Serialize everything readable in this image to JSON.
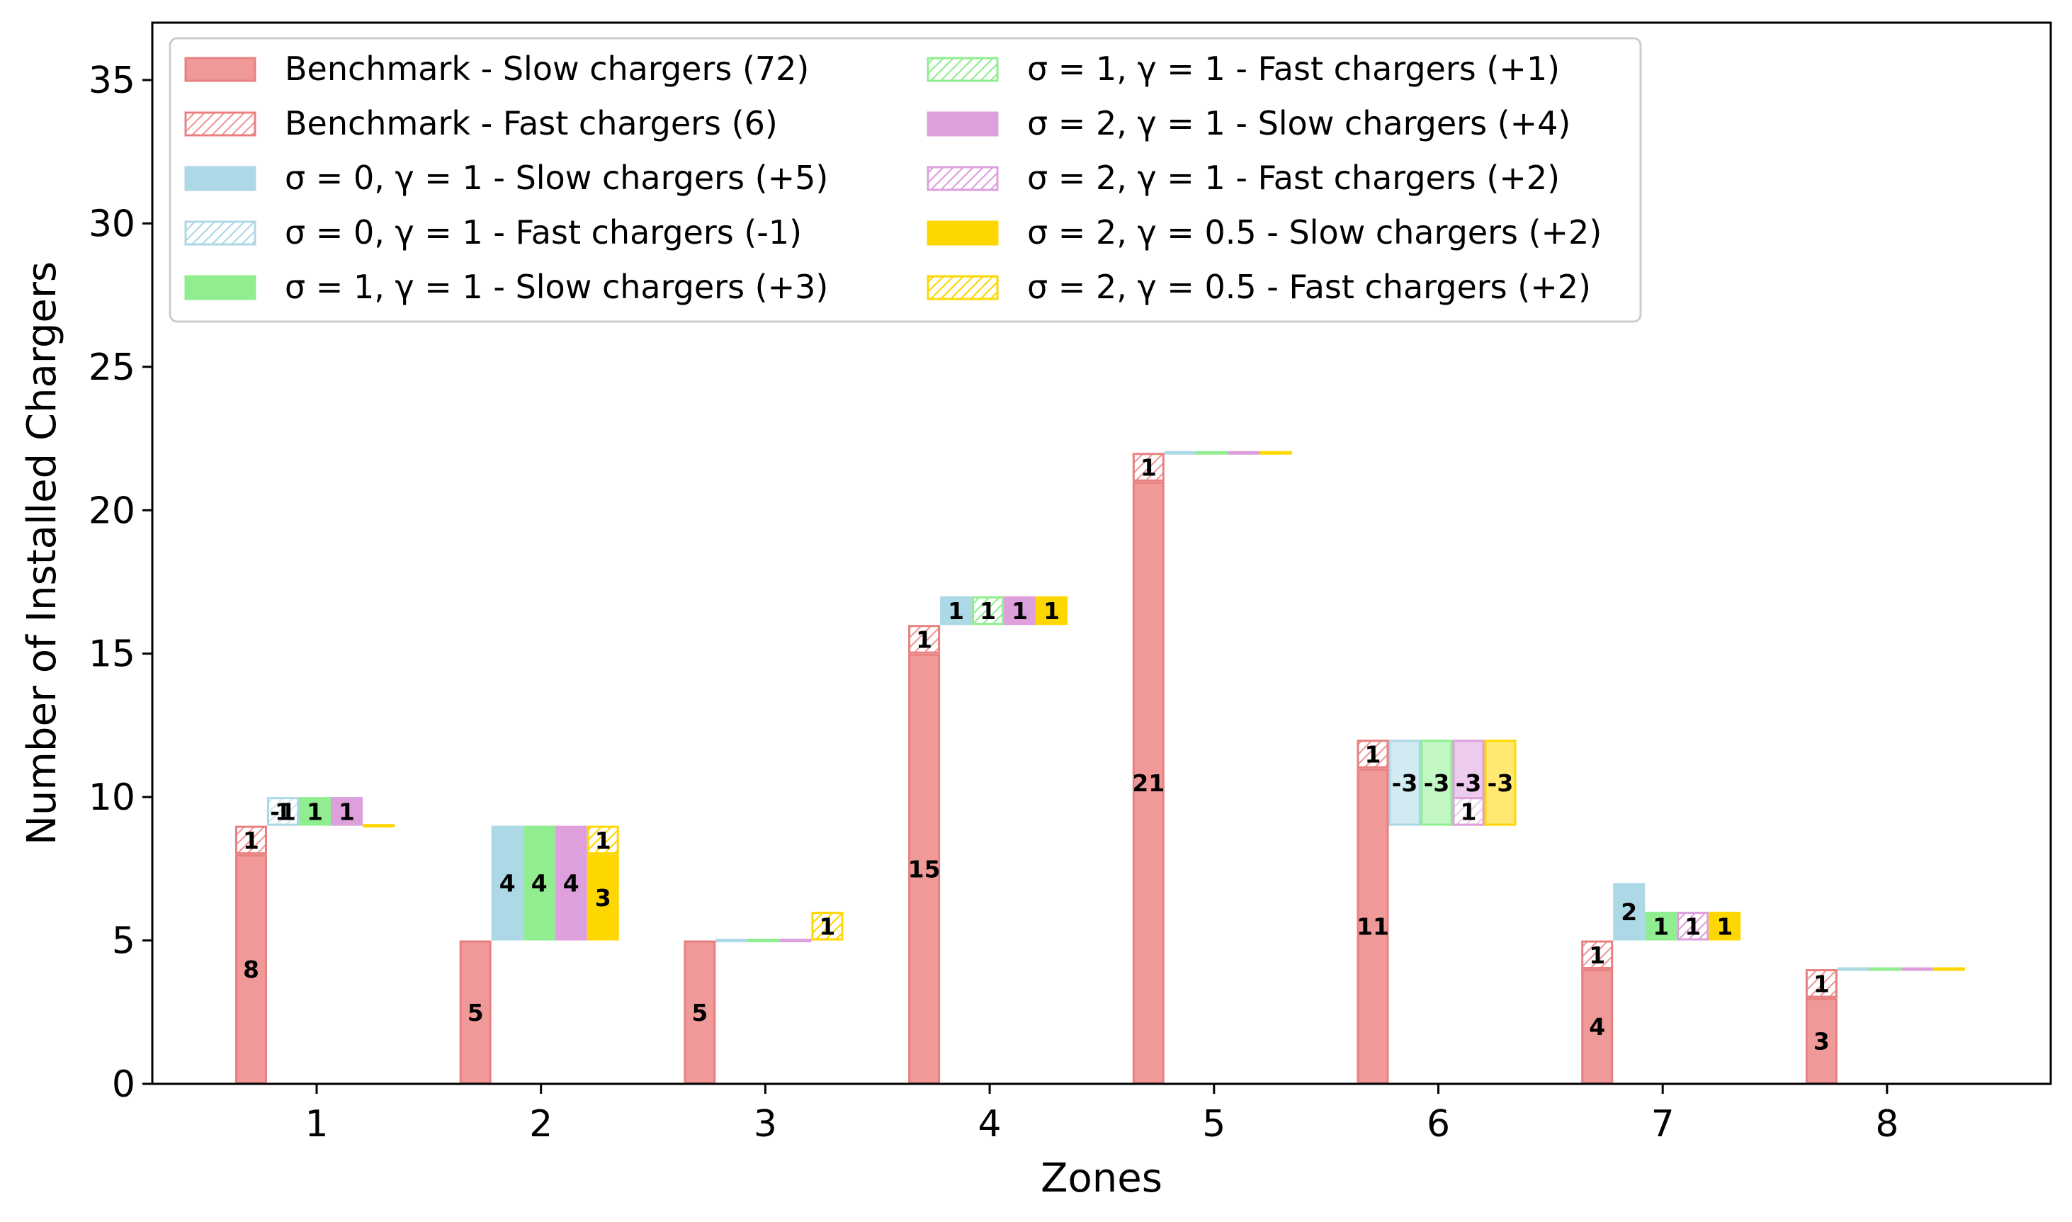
{
  "chart_data": {
    "type": "bar",
    "subtype": "stacked-offset-grouped",
    "title": "",
    "xlabel": "Zones",
    "ylabel": "Number of Installed Chargers",
    "ylim": [
      0,
      37
    ],
    "yticks": [
      0,
      5,
      10,
      15,
      20,
      25,
      30,
      35
    ],
    "grid": false,
    "legend_position": "top-left",
    "categories": [
      "1",
      "2",
      "3",
      "4",
      "5",
      "6",
      "7",
      "8"
    ],
    "colors": {
      "benchmark": "#f09999",
      "benchmark_edge": "#e88080",
      "s0g1": "#add8e6",
      "s1g1": "#90ee90",
      "s2g1": "#dda0dd",
      "s2g05": "#ffd700"
    },
    "benchmark": {
      "slow": [
        8,
        5,
        5,
        15,
        21,
        11,
        4,
        3
      ],
      "fast": [
        1,
        0,
        0,
        1,
        1,
        1,
        1,
        1
      ]
    },
    "scenario_names": [
      "σ=0, γ=1",
      "σ=1, γ=1",
      "σ=2, γ=1",
      "σ=2, γ=0.5"
    ],
    "scenario_color_keys": [
      "s0g1",
      "s1g1",
      "s2g1",
      "s2g05"
    ],
    "scenarios": [
      {
        "slow": [
          1,
          4,
          0,
          1,
          0,
          -3,
          2,
          0
        ],
        "fast": [
          -1,
          0,
          0,
          0,
          0,
          0,
          0,
          0
        ]
      },
      {
        "slow": [
          1,
          4,
          0,
          0,
          0,
          -3,
          1,
          0
        ],
        "fast": [
          0,
          0,
          0,
          1,
          0,
          0,
          0,
          0
        ]
      },
      {
        "slow": [
          1,
          4,
          0,
          1,
          0,
          -3,
          0,
          0
        ],
        "fast": [
          0,
          0,
          0,
          0,
          0,
          1,
          1,
          0
        ]
      },
      {
        "slow": [
          0,
          3,
          0,
          1,
          0,
          -3,
          1,
          0
        ],
        "fast": [
          0,
          1,
          1,
          0,
          0,
          0,
          0,
          0
        ]
      }
    ],
    "legend": [
      {
        "label": "Benchmark - Slow chargers (72)",
        "key": "benchmark",
        "fill": "solid"
      },
      {
        "label": "Benchmark - Fast chargers (6)",
        "key": "benchmark",
        "fill": "hatch"
      },
      {
        "label": "σ = 0, γ = 1 - Slow chargers (+5)",
        "key": "s0g1",
        "fill": "solid"
      },
      {
        "label": "σ = 0, γ = 1 - Fast chargers (-1)",
        "key": "s0g1",
        "fill": "hatch"
      },
      {
        "label": "σ = 1, γ = 1 - Slow chargers (+3)",
        "key": "s1g1",
        "fill": "solid"
      },
      {
        "label": "σ = 1, γ = 1 - Fast chargers (+1)",
        "key": "s1g1",
        "fill": "hatch"
      },
      {
        "label": "σ = 2, γ = 1 - Slow chargers (+4)",
        "key": "s2g1",
        "fill": "solid"
      },
      {
        "label": "σ = 2, γ = 1 - Fast chargers (+2)",
        "key": "s2g1",
        "fill": "hatch"
      },
      {
        "label": "σ = 2, γ = 0.5 - Slow chargers (+2)",
        "key": "s2g05",
        "fill": "solid"
      },
      {
        "label": "σ = 2, γ = 0.5 - Fast chargers (+2)",
        "key": "s2g05",
        "fill": "hatch"
      }
    ]
  }
}
